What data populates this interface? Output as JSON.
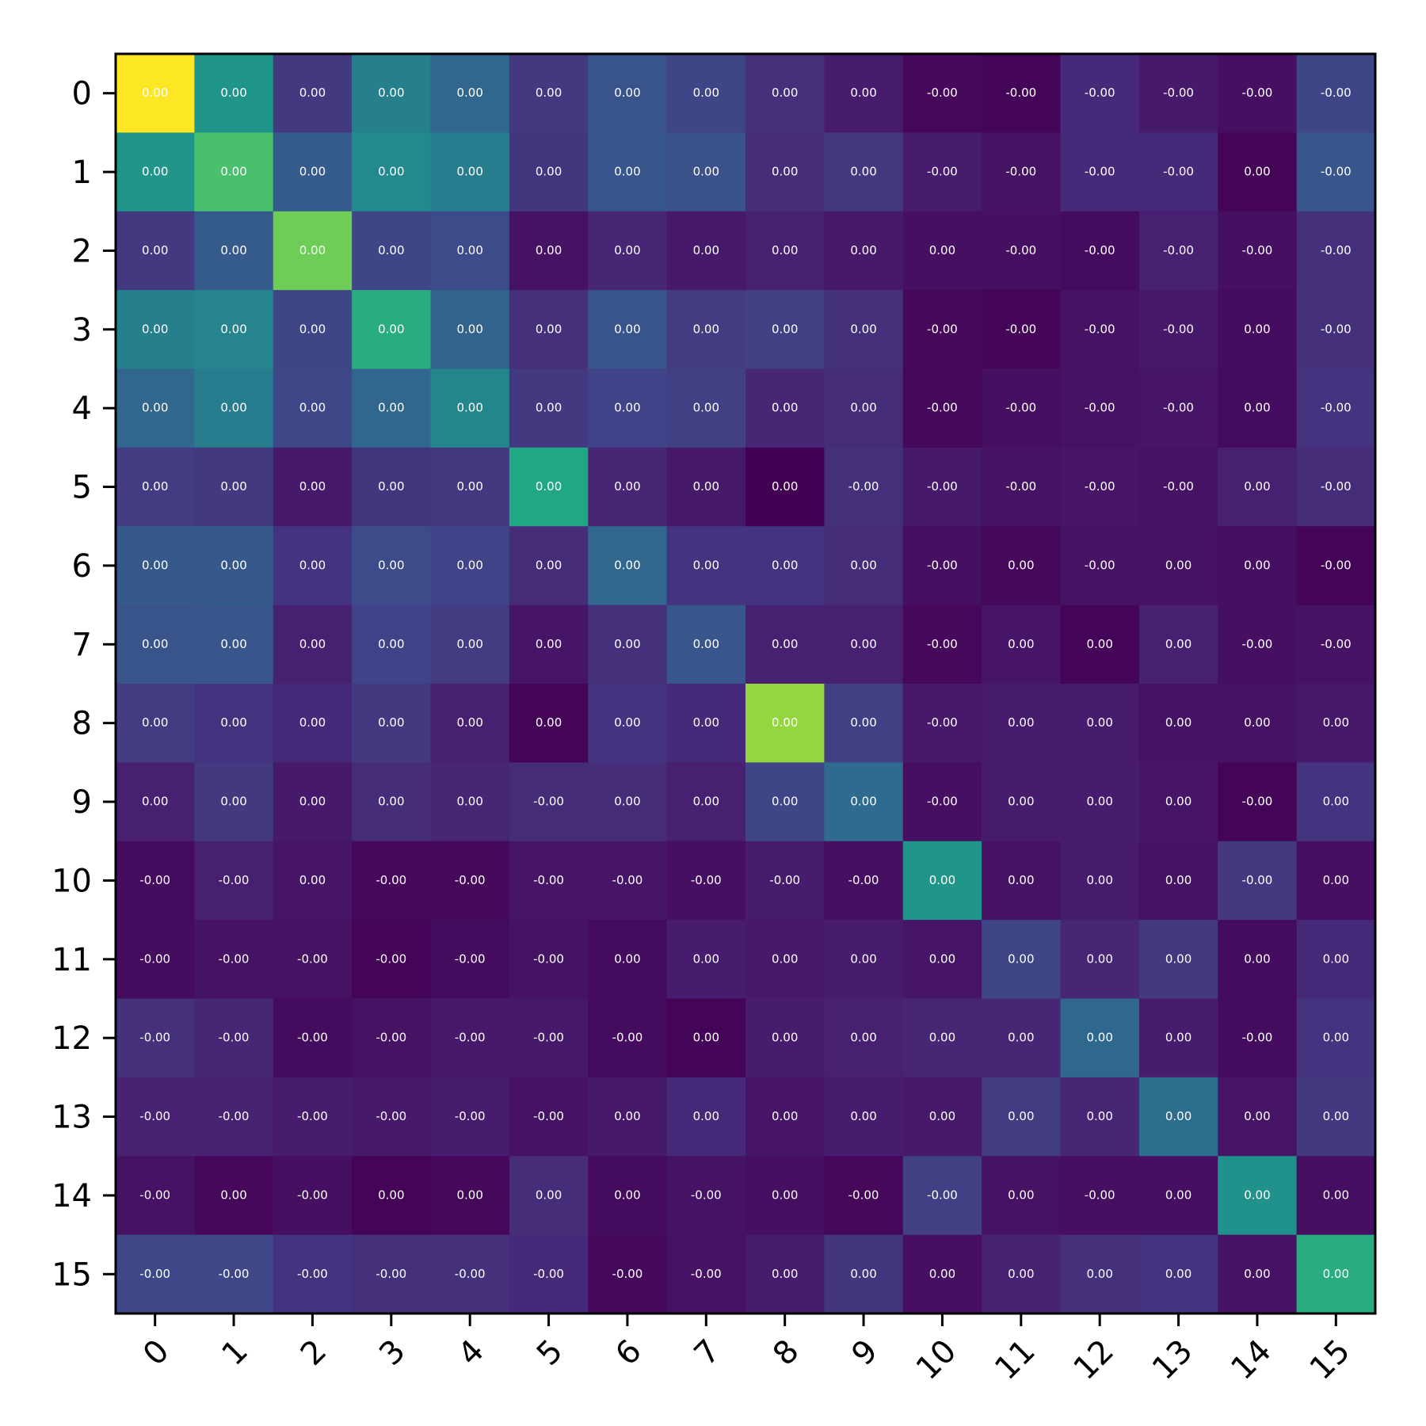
{
  "chart_data": {
    "type": "heatmap",
    "title": "",
    "xlabel": "",
    "ylabel": "",
    "x_tick_labels": [
      "0",
      "1",
      "2",
      "3",
      "4",
      "5",
      "6",
      "7",
      "8",
      "9",
      "10",
      "11",
      "12",
      "13",
      "14",
      "15"
    ],
    "y_tick_labels": [
      "0",
      "1",
      "2",
      "3",
      "4",
      "5",
      "6",
      "7",
      "8",
      "9",
      "10",
      "11",
      "12",
      "13",
      "14",
      "15"
    ],
    "colormap": "viridis",
    "value_range": [
      0,
      1
    ],
    "intensity": [
      [
        1.0,
        0.52,
        0.17,
        0.43,
        0.33,
        0.17,
        0.26,
        0.21,
        0.14,
        0.08,
        0.02,
        0.01,
        0.12,
        0.07,
        0.04,
        0.21
      ],
      [
        0.52,
        0.71,
        0.29,
        0.47,
        0.42,
        0.16,
        0.27,
        0.25,
        0.13,
        0.17,
        0.08,
        0.05,
        0.12,
        0.12,
        0.01,
        0.27
      ],
      [
        0.17,
        0.29,
        0.78,
        0.21,
        0.23,
        0.05,
        0.11,
        0.07,
        0.09,
        0.07,
        0.04,
        0.04,
        0.03,
        0.09,
        0.04,
        0.14
      ],
      [
        0.43,
        0.45,
        0.21,
        0.62,
        0.32,
        0.14,
        0.26,
        0.18,
        0.19,
        0.14,
        0.02,
        0.01,
        0.05,
        0.07,
        0.03,
        0.14
      ],
      [
        0.33,
        0.42,
        0.22,
        0.33,
        0.46,
        0.17,
        0.2,
        0.19,
        0.11,
        0.13,
        0.02,
        0.04,
        0.05,
        0.06,
        0.03,
        0.15
      ],
      [
        0.18,
        0.17,
        0.07,
        0.16,
        0.17,
        0.6,
        0.11,
        0.07,
        0.0,
        0.14,
        0.07,
        0.05,
        0.06,
        0.05,
        0.09,
        0.13
      ],
      [
        0.28,
        0.28,
        0.15,
        0.23,
        0.2,
        0.13,
        0.33,
        0.15,
        0.15,
        0.13,
        0.04,
        0.02,
        0.05,
        0.05,
        0.04,
        0.01
      ],
      [
        0.26,
        0.27,
        0.09,
        0.2,
        0.18,
        0.06,
        0.14,
        0.27,
        0.09,
        0.09,
        0.02,
        0.06,
        0.01,
        0.09,
        0.04,
        0.05
      ],
      [
        0.18,
        0.15,
        0.12,
        0.17,
        0.09,
        0.01,
        0.15,
        0.12,
        0.84,
        0.19,
        0.07,
        0.08,
        0.08,
        0.05,
        0.05,
        0.07
      ],
      [
        0.09,
        0.17,
        0.07,
        0.13,
        0.11,
        0.13,
        0.13,
        0.09,
        0.21,
        0.35,
        0.04,
        0.08,
        0.08,
        0.06,
        0.01,
        0.15
      ],
      [
        0.03,
        0.09,
        0.06,
        0.02,
        0.02,
        0.06,
        0.06,
        0.04,
        0.08,
        0.04,
        0.52,
        0.05,
        0.08,
        0.05,
        0.17,
        0.04
      ],
      [
        0.03,
        0.05,
        0.05,
        0.01,
        0.03,
        0.05,
        0.03,
        0.08,
        0.07,
        0.08,
        0.06,
        0.21,
        0.11,
        0.17,
        0.03,
        0.12
      ],
      [
        0.14,
        0.11,
        0.03,
        0.05,
        0.07,
        0.07,
        0.03,
        0.01,
        0.08,
        0.09,
        0.11,
        0.11,
        0.34,
        0.08,
        0.03,
        0.15
      ],
      [
        0.1,
        0.1,
        0.08,
        0.07,
        0.08,
        0.05,
        0.07,
        0.12,
        0.06,
        0.08,
        0.07,
        0.18,
        0.11,
        0.36,
        0.06,
        0.17
      ],
      [
        0.05,
        0.02,
        0.04,
        0.01,
        0.02,
        0.13,
        0.03,
        0.05,
        0.04,
        0.02,
        0.19,
        0.05,
        0.04,
        0.04,
        0.51,
        0.04
      ],
      [
        0.22,
        0.22,
        0.15,
        0.14,
        0.14,
        0.12,
        0.02,
        0.05,
        0.08,
        0.16,
        0.04,
        0.1,
        0.14,
        0.15,
        0.05,
        0.62
      ]
    ],
    "cell_labels": [
      [
        "0.00",
        "0.00",
        "0.00",
        "0.00",
        "0.00",
        "0.00",
        "0.00",
        "0.00",
        "0.00",
        "0.00",
        "-0.00",
        "-0.00",
        "-0.00",
        "-0.00",
        "-0.00",
        "-0.00"
      ],
      [
        "0.00",
        "0.00",
        "0.00",
        "0.00",
        "0.00",
        "0.00",
        "0.00",
        "0.00",
        "0.00",
        "0.00",
        "-0.00",
        "-0.00",
        "-0.00",
        "-0.00",
        "0.00",
        "-0.00"
      ],
      [
        "0.00",
        "0.00",
        "0.00",
        "0.00",
        "0.00",
        "0.00",
        "0.00",
        "0.00",
        "0.00",
        "0.00",
        "0.00",
        "-0.00",
        "-0.00",
        "-0.00",
        "-0.00",
        "-0.00"
      ],
      [
        "0.00",
        "0.00",
        "0.00",
        "0.00",
        "0.00",
        "0.00",
        "0.00",
        "0.00",
        "0.00",
        "0.00",
        "-0.00",
        "-0.00",
        "-0.00",
        "-0.00",
        "0.00",
        "-0.00"
      ],
      [
        "0.00",
        "0.00",
        "0.00",
        "0.00",
        "0.00",
        "0.00",
        "0.00",
        "0.00",
        "0.00",
        "0.00",
        "-0.00",
        "-0.00",
        "-0.00",
        "-0.00",
        "0.00",
        "-0.00"
      ],
      [
        "0.00",
        "0.00",
        "0.00",
        "0.00",
        "0.00",
        "0.00",
        "0.00",
        "0.00",
        "0.00",
        "-0.00",
        "-0.00",
        "-0.00",
        "-0.00",
        "-0.00",
        "0.00",
        "-0.00"
      ],
      [
        "0.00",
        "0.00",
        "0.00",
        "0.00",
        "0.00",
        "0.00",
        "0.00",
        "0.00",
        "0.00",
        "0.00",
        "-0.00",
        "0.00",
        "-0.00",
        "0.00",
        "0.00",
        "-0.00"
      ],
      [
        "0.00",
        "0.00",
        "0.00",
        "0.00",
        "0.00",
        "0.00",
        "0.00",
        "0.00",
        "0.00",
        "0.00",
        "-0.00",
        "0.00",
        "0.00",
        "0.00",
        "-0.00",
        "-0.00"
      ],
      [
        "0.00",
        "0.00",
        "0.00",
        "0.00",
        "0.00",
        "0.00",
        "0.00",
        "0.00",
        "0.00",
        "0.00",
        "-0.00",
        "0.00",
        "0.00",
        "0.00",
        "0.00",
        "0.00"
      ],
      [
        "0.00",
        "0.00",
        "0.00",
        "0.00",
        "0.00",
        "-0.00",
        "0.00",
        "0.00",
        "0.00",
        "0.00",
        "-0.00",
        "0.00",
        "0.00",
        "0.00",
        "-0.00",
        "0.00"
      ],
      [
        "-0.00",
        "-0.00",
        "0.00",
        "-0.00",
        "-0.00",
        "-0.00",
        "-0.00",
        "-0.00",
        "-0.00",
        "-0.00",
        "0.00",
        "0.00",
        "0.00",
        "0.00",
        "-0.00",
        "0.00"
      ],
      [
        "-0.00",
        "-0.00",
        "-0.00",
        "-0.00",
        "-0.00",
        "-0.00",
        "0.00",
        "0.00",
        "0.00",
        "0.00",
        "0.00",
        "0.00",
        "0.00",
        "0.00",
        "0.00",
        "0.00"
      ],
      [
        "-0.00",
        "-0.00",
        "-0.00",
        "-0.00",
        "-0.00",
        "-0.00",
        "-0.00",
        "0.00",
        "0.00",
        "0.00",
        "0.00",
        "0.00",
        "0.00",
        "0.00",
        "-0.00",
        "0.00"
      ],
      [
        "-0.00",
        "-0.00",
        "-0.00",
        "-0.00",
        "-0.00",
        "-0.00",
        "0.00",
        "0.00",
        "0.00",
        "0.00",
        "0.00",
        "0.00",
        "0.00",
        "0.00",
        "0.00",
        "0.00"
      ],
      [
        "-0.00",
        "0.00",
        "-0.00",
        "0.00",
        "0.00",
        "0.00",
        "0.00",
        "-0.00",
        "0.00",
        "-0.00",
        "-0.00",
        "0.00",
        "-0.00",
        "0.00",
        "0.00",
        "0.00"
      ],
      [
        "-0.00",
        "-0.00",
        "-0.00",
        "-0.00",
        "-0.00",
        "-0.00",
        "-0.00",
        "-0.00",
        "0.00",
        "0.00",
        "0.00",
        "0.00",
        "0.00",
        "0.00",
        "0.00",
        "0.00"
      ]
    ]
  }
}
